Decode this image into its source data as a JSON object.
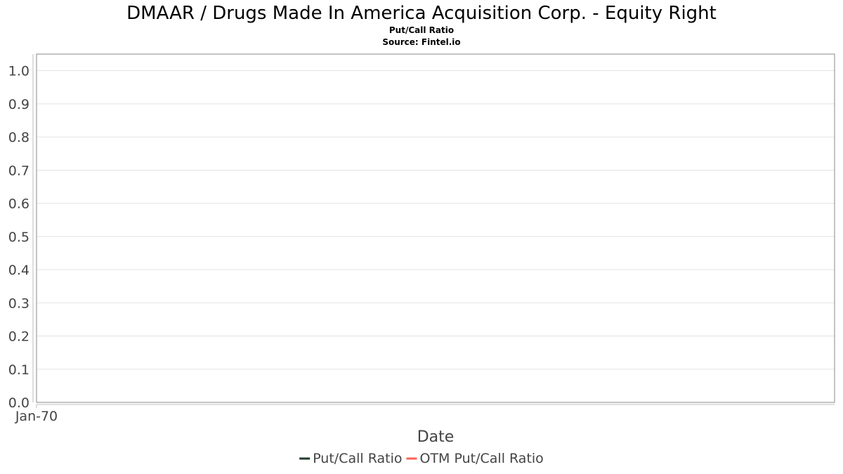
{
  "chart_data": {
    "type": "line",
    "title": "DMAAR / Drugs Made In America Acquisition Corp. - Equity Right",
    "subtitle": "Put/Call Ratio",
    "source": "Source: Fintel.io",
    "xlabel": "Date",
    "ylabel": "",
    "x_ticks": [
      "Jan-70"
    ],
    "y_ticks": [
      "0.0",
      "0.1",
      "0.2",
      "0.3",
      "0.4",
      "0.5",
      "0.6",
      "0.7",
      "0.8",
      "0.9",
      "1.0"
    ],
    "ylim": [
      0,
      1.05
    ],
    "grid": true,
    "legend_position": "bottom",
    "series": [
      {
        "name": "Put/Call Ratio",
        "color": "#1f3a2a",
        "x": [],
        "y": []
      },
      {
        "name": "OTM Put/Call Ratio",
        "color": "#ff6150",
        "x": [],
        "y": []
      }
    ]
  }
}
